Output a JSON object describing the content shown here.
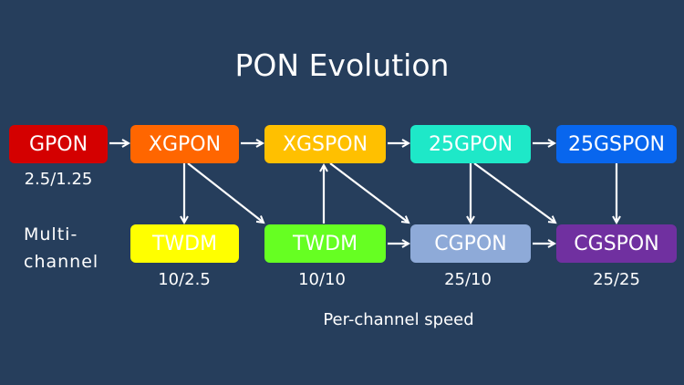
{
  "title": "PON Evolution",
  "nodes": {
    "gpon": {
      "label": "GPON",
      "color": "#d40000",
      "speed": "2.5/1.25"
    },
    "xgpon": {
      "label": "XGPON",
      "color": "#ff6600"
    },
    "xgspon": {
      "label": "XGSPON",
      "color": "#ffc000"
    },
    "g25pon": {
      "label": "25GPON",
      "color": "#1ee8c8"
    },
    "g25spon": {
      "label": "25GSPON",
      "color": "#0866ee"
    },
    "twdm1": {
      "label": "TWDM",
      "color": "#ffff00",
      "speed": "10/2.5"
    },
    "twdm2": {
      "label": "TWDM",
      "color": "#66ff22",
      "speed": "10/10"
    },
    "cgpon": {
      "label": "CGPON",
      "color": "#8eaad8",
      "speed": "25/10"
    },
    "cgspon": {
      "label": "CGSPON",
      "color": "#7030a0",
      "speed": "25/25"
    }
  },
  "row_label": {
    "line1": "Multi-",
    "line2": "channel"
  },
  "footer": "Per-channel speed",
  "edges": [
    [
      "gpon",
      "xgpon"
    ],
    [
      "xgpon",
      "xgspon"
    ],
    [
      "xgspon",
      "g25pon"
    ],
    [
      "g25pon",
      "g25spon"
    ],
    [
      "xgpon",
      "twdm1"
    ],
    [
      "xgpon",
      "twdm2"
    ],
    [
      "twdm2",
      "xgspon"
    ],
    [
      "xgspon",
      "cgpon"
    ],
    [
      "twdm2",
      "cgpon"
    ],
    [
      "g25pon",
      "cgpon"
    ],
    [
      "g25pon",
      "cgspon"
    ],
    [
      "g25spon",
      "cgspon"
    ],
    [
      "cgpon",
      "cgspon"
    ]
  ]
}
